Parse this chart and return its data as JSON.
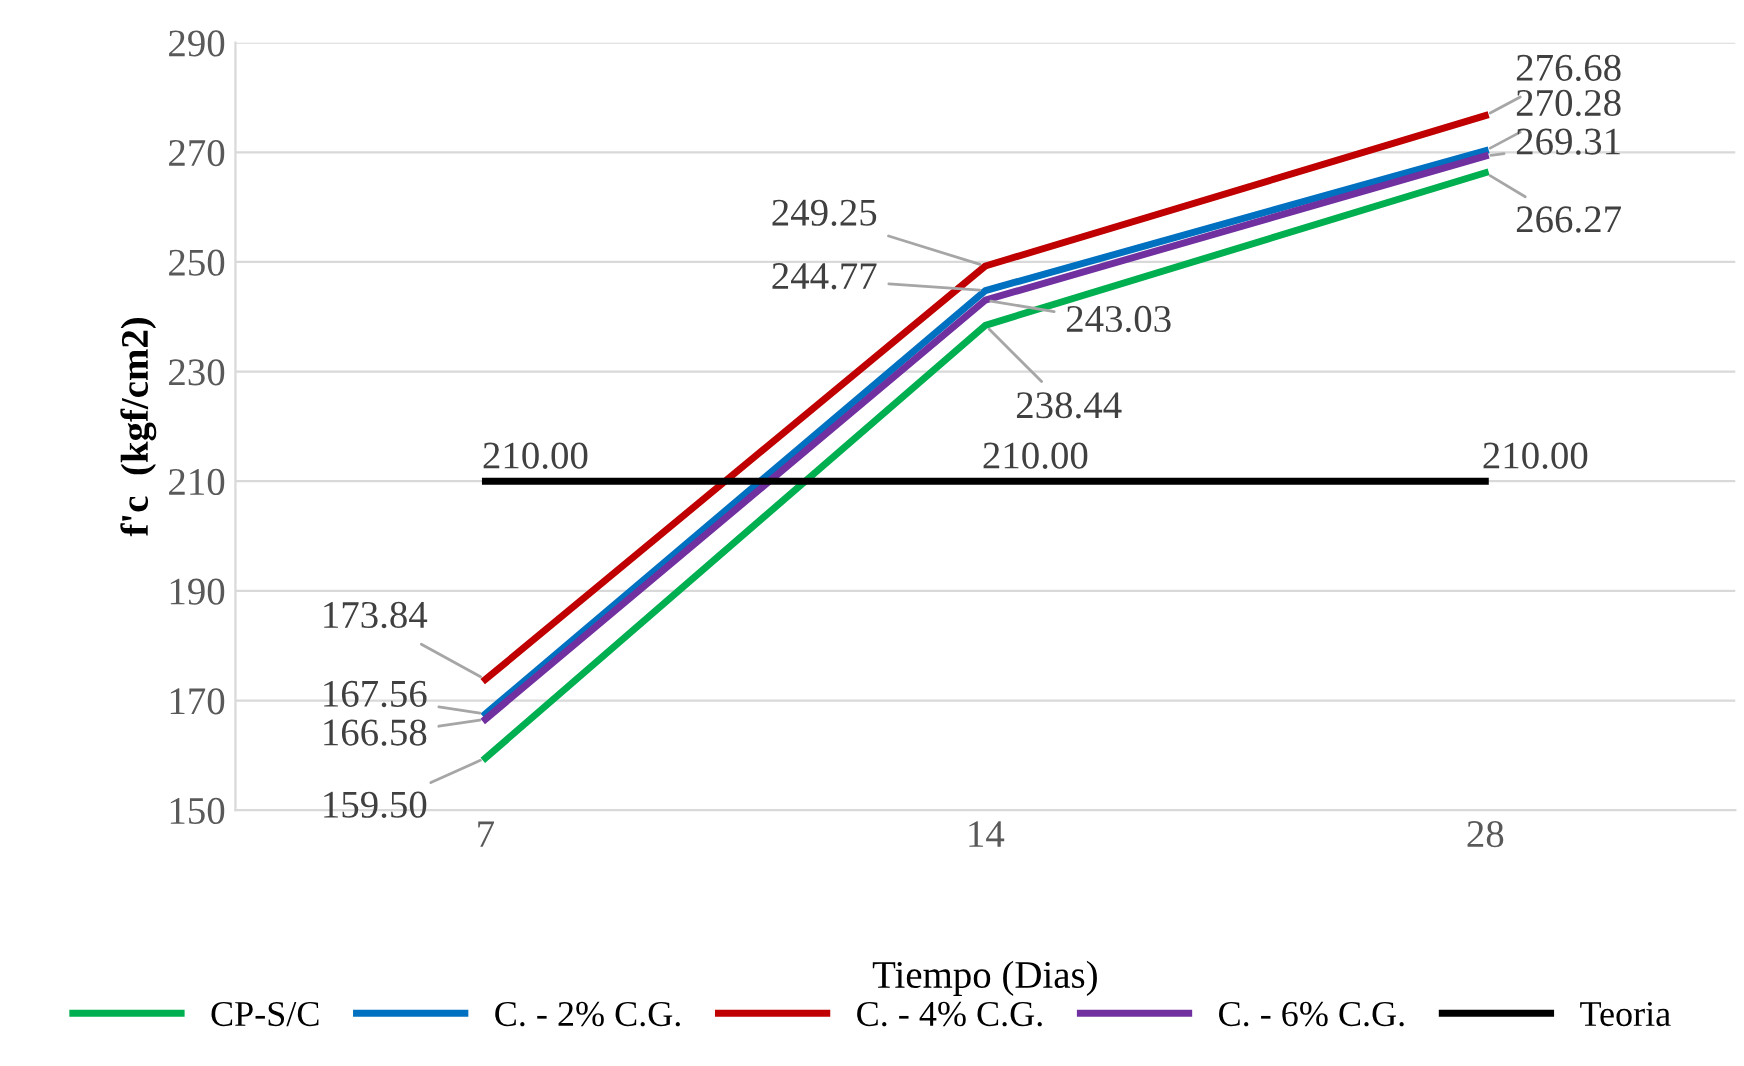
{
  "chart_data": {
    "type": "line",
    "xlabel": "Tiempo (Dias)",
    "ylabel": "f'c  (kgf/cm2)",
    "categories": [
      "7",
      "14",
      "28"
    ],
    "ylim": [
      150,
      290
    ],
    "yticks": [
      150,
      170,
      190,
      210,
      230,
      250,
      270,
      290
    ],
    "grid": "y",
    "legend": "bottom",
    "marker": "none",
    "line_style": "solid",
    "series": [
      {
        "name": "CP-S/C",
        "color": "#00b050",
        "values": [
          159.5,
          238.44,
          266.27
        ],
        "value_labels": [
          "159.50",
          "238.44",
          "266.27"
        ]
      },
      {
        "name": "C. - 2% C.G.",
        "color": "#0070c0",
        "values": [
          167.56,
          244.77,
          270.28
        ],
        "value_labels": [
          "167.56",
          "244.77",
          "270.28"
        ]
      },
      {
        "name": "C. - 4% C.G.",
        "color": "#c00000",
        "values": [
          173.84,
          249.25,
          276.68
        ],
        "value_labels": [
          "173.84",
          "249.25",
          "276.68"
        ]
      },
      {
        "name": "C. - 6% C.G.",
        "color": "#7030a0",
        "values": [
          166.58,
          243.03,
          269.31
        ],
        "value_labels": [
          "166.58",
          "243.03",
          "269.31"
        ]
      },
      {
        "name": "Teoria",
        "color": "#000000",
        "values": [
          210,
          210,
          210
        ],
        "value_labels": [
          "210.00",
          "210.00",
          "210.00"
        ]
      }
    ]
  }
}
